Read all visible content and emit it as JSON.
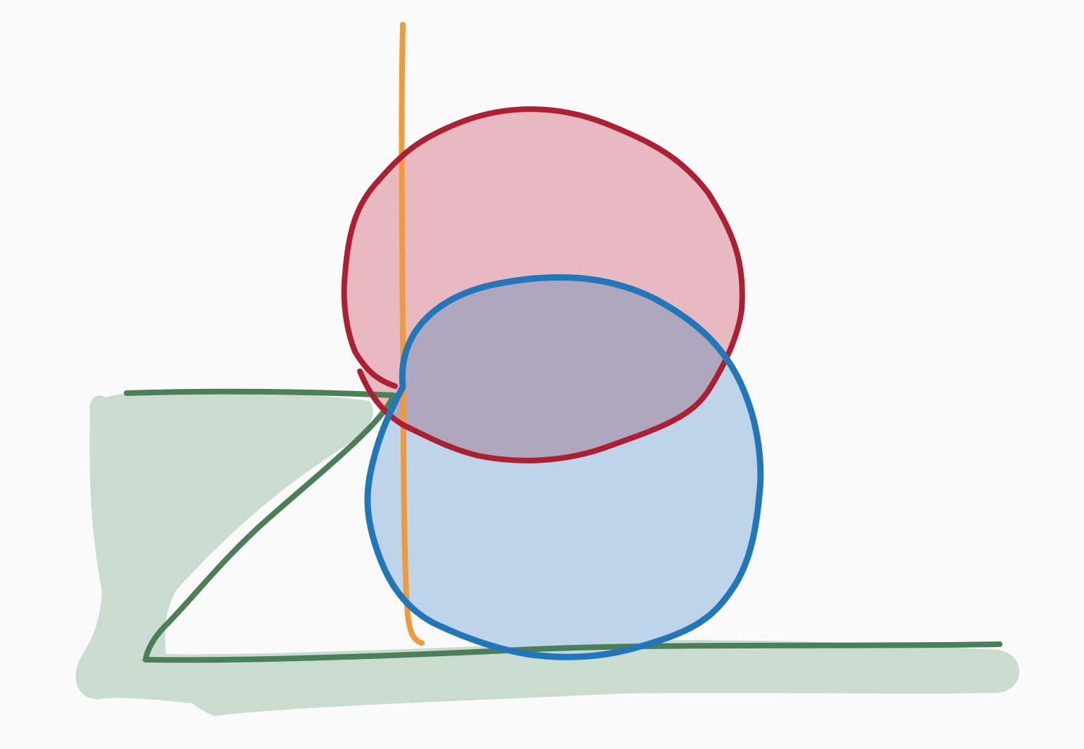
{
  "colors": {
    "background": "#fbfafa",
    "green_fill": "#cadbd0",
    "green_stroke": "#4a7f57",
    "red_fill": "#e8b9c0",
    "red_stroke": "#ad1f33",
    "blue_fill": "#bed4e8",
    "blue_stroke": "#2277ba",
    "overlap_fill": "#aea7bd",
    "orange_stroke": "#f09a3b"
  },
  "shapes": [
    {
      "name": "green-triangle",
      "kind": "filled triangle sketch"
    },
    {
      "name": "red-blob",
      "kind": "filled rounded shape sketch"
    },
    {
      "name": "blue-blob",
      "kind": "filled rounded shape sketch"
    },
    {
      "name": "orange-line",
      "kind": "vertical stroke"
    }
  ]
}
